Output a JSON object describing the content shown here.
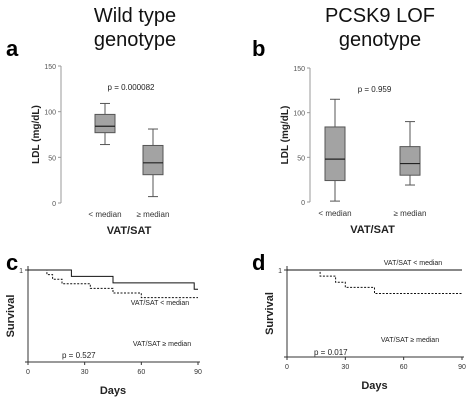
{
  "headers": {
    "left": [
      "Wild type",
      "genotype"
    ],
    "right": [
      "PCSK9 LOF",
      "genotype"
    ]
  },
  "chart_data": [
    {
      "panel": "a",
      "type": "box",
      "ylabel": "LDL (mg/dL)",
      "xlabel": "VAT/SAT",
      "categories": [
        "< median",
        "≥ median"
      ],
      "yticks": [
        0,
        50,
        100,
        150
      ],
      "ylim": [
        0,
        150
      ],
      "annotation": "p = 0.000082",
      "boxes": [
        {
          "min": 64,
          "q1": 77,
          "median": 84,
          "q3": 97,
          "max": 109
        },
        {
          "min": 7,
          "q1": 31,
          "median": 44,
          "q3": 63,
          "max": 81
        }
      ]
    },
    {
      "panel": "b",
      "type": "box",
      "ylabel": "LDL (mg/dL)",
      "xlabel": "VAT/SAT",
      "categories": [
        "< median",
        "≥ median"
      ],
      "yticks": [
        0,
        50,
        100,
        150
      ],
      "ylim": [
        0,
        150
      ],
      "annotation": "p = 0.959",
      "boxes": [
        {
          "min": 1,
          "q1": 24,
          "median": 48,
          "q3": 84,
          "max": 115
        },
        {
          "min": 19,
          "q1": 30,
          "median": 43,
          "q3": 62,
          "max": 90
        }
      ]
    },
    {
      "panel": "c",
      "type": "line",
      "ylabel": "Survival",
      "xlabel": "Days",
      "xticks": [
        0,
        30,
        60,
        90
      ],
      "xlim": [
        0,
        90
      ],
      "ylim": [
        0,
        1
      ],
      "yticks": [
        0,
        1
      ],
      "annotation": "p = 0.527",
      "series": [
        {
          "name": "VAT/SAT < median",
          "style": "solid",
          "x": [
            0,
            23,
            23,
            45,
            45,
            88,
            88,
            90
          ],
          "y": [
            1,
            1,
            0.93,
            0.93,
            0.86,
            0.86,
            0.79,
            0.79
          ]
        },
        {
          "name": "VAT/SAT ≥ median",
          "style": "dashed",
          "x": [
            0,
            10,
            10,
            13,
            13,
            18,
            18,
            33,
            33,
            45,
            45,
            60,
            60,
            90
          ],
          "y": [
            1,
            1,
            0.95,
            0.95,
            0.9,
            0.9,
            0.85,
            0.85,
            0.8,
            0.8,
            0.75,
            0.75,
            0.7,
            0.7
          ]
        }
      ]
    },
    {
      "panel": "d",
      "type": "line",
      "ylabel": "Survival",
      "xlabel": "Days",
      "xticks": [
        0,
        30,
        60,
        90
      ],
      "xlim": [
        0,
        90
      ],
      "ylim": [
        0,
        1
      ],
      "yticks": [
        0,
        1
      ],
      "annotation": "p = 0.017",
      "series": [
        {
          "name": "VAT/SAT < median",
          "style": "solid",
          "x": [
            0,
            90
          ],
          "y": [
            1,
            1
          ]
        },
        {
          "name": "VAT/SAT ≥ median",
          "style": "dashed",
          "x": [
            0,
            17,
            17,
            25,
            25,
            30,
            30,
            45,
            45,
            90
          ],
          "y": [
            1,
            1,
            0.93,
            0.93,
            0.86,
            0.86,
            0.8,
            0.8,
            0.73,
            0.73
          ]
        }
      ]
    }
  ]
}
